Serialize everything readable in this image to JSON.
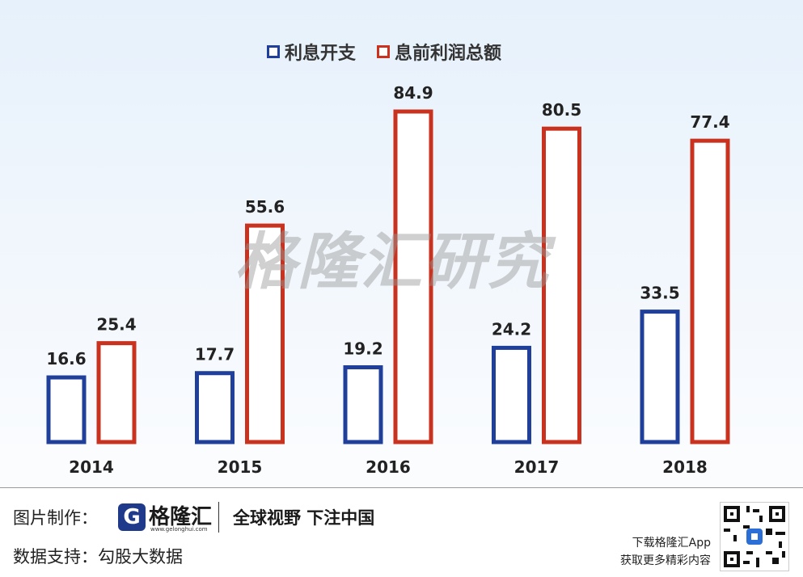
{
  "chart_data": {
    "type": "bar",
    "categories": [
      "2014",
      "2015",
      "2016",
      "2017",
      "2018"
    ],
    "series": [
      {
        "name": "利息开支",
        "values": [
          16.6,
          17.7,
          19.2,
          24.2,
          33.5
        ],
        "color": "#1f3f9a"
      },
      {
        "name": "息前利润总额",
        "values": [
          25.4,
          55.6,
          84.9,
          80.5,
          77.4
        ],
        "color": "#c8321e"
      }
    ],
    "ylim": [
      0,
      95
    ],
    "grid": false,
    "legend_position": "top-center",
    "bar_style": "outlined"
  },
  "watermark": "格隆汇研究",
  "footer": {
    "credit_label": "图片制作：",
    "logo_name": "格隆汇",
    "logo_url": "www.gelonghui.com",
    "slogan": "全球视野 下注中国",
    "source_label": "数据支持：",
    "source_name": "勾股大数据",
    "app_line1": "下载格隆汇App",
    "app_line2": "获取更多精彩内容"
  }
}
